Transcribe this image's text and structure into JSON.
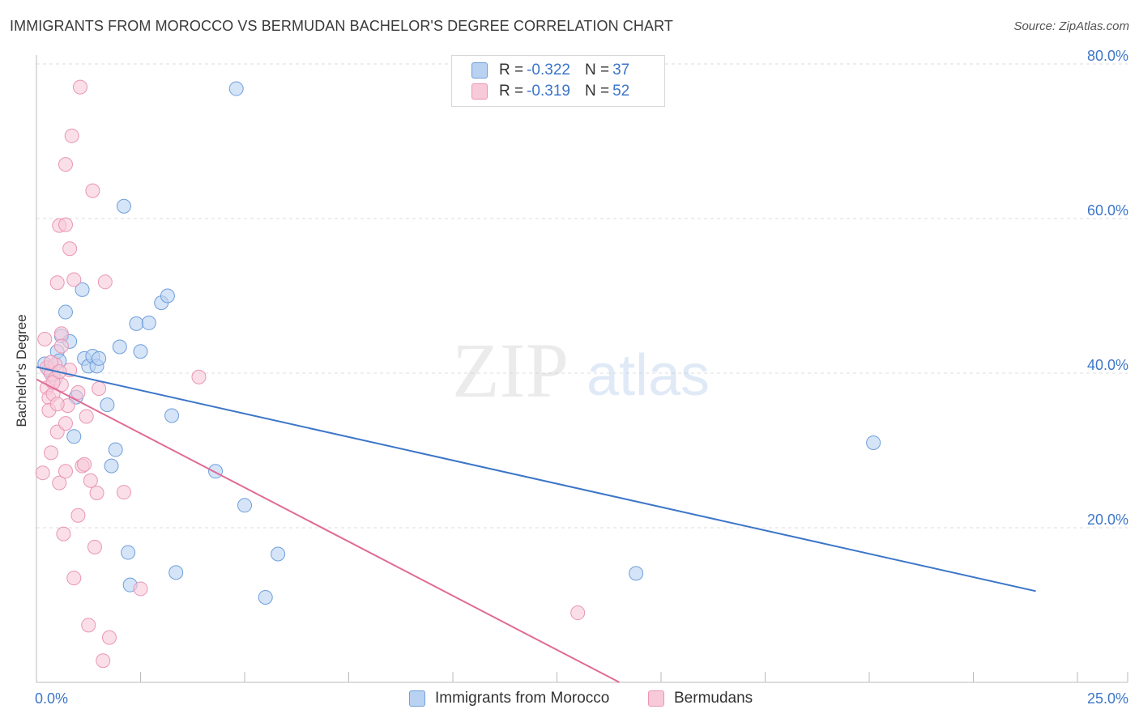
{
  "header": {
    "title": "IMMIGRANTS FROM MOROCCO VS BERMUDAN BACHELOR'S DEGREE CORRELATION CHART",
    "source": "Source: ZipAtlas.com"
  },
  "watermark": {
    "zip": "ZIP",
    "atlas": "atlas"
  },
  "legend": {
    "rows": [
      {
        "r_label": "R = ",
        "r_value": "-0.322",
        "n_label": "N = ",
        "n_value": "37"
      },
      {
        "r_label": "R = ",
        "r_value": "-0.319",
        "n_label": "N = ",
        "n_value": "52"
      }
    ]
  },
  "chart_data": {
    "type": "scatter",
    "title": "IMMIGRANTS FROM MOROCCO VS BERMUDAN BACHELOR'S DEGREE CORRELATION CHART",
    "xlabel": "",
    "ylabel": "Bachelor's Degree",
    "xlim": [
      0,
      25
    ],
    "ylim": [
      0,
      80
    ],
    "x_tick_labels": [
      "0.0%",
      "25.0%"
    ],
    "y_tick_labels": [
      "20.0%",
      "40.0%",
      "60.0%",
      "80.0%"
    ],
    "y_ticks": [
      20,
      40,
      60,
      80
    ],
    "grid": true,
    "series": [
      {
        "name": "Immigrants from Morocco",
        "color": "#6f9fdc",
        "fill": "#b9d2f2",
        "line_color": "#3c76c8",
        "trend": {
          "x0": 0,
          "y0": 40.8,
          "x1": 24.0,
          "y1": 11.8
        },
        "points": [
          [
            0.2,
            41.2
          ],
          [
            0.4,
            39.8
          ],
          [
            0.5,
            42.8
          ],
          [
            0.6,
            44.8
          ],
          [
            0.7,
            47.9
          ],
          [
            0.8,
            44.1
          ],
          [
            0.9,
            31.8
          ],
          [
            0.95,
            36.9
          ],
          [
            1.1,
            50.8
          ],
          [
            1.15,
            41.9
          ],
          [
            1.25,
            40.9
          ],
          [
            1.35,
            42.2
          ],
          [
            1.45,
            40.9
          ],
          [
            1.5,
            41.9
          ],
          [
            1.7,
            35.9
          ],
          [
            1.8,
            28.0
          ],
          [
            1.9,
            30.1
          ],
          [
            2.0,
            43.4
          ],
          [
            2.1,
            61.6
          ],
          [
            2.2,
            16.8
          ],
          [
            2.25,
            12.6
          ],
          [
            2.4,
            46.4
          ],
          [
            2.5,
            42.8
          ],
          [
            2.7,
            46.5
          ],
          [
            3.0,
            49.1
          ],
          [
            3.15,
            50.0
          ],
          [
            3.25,
            34.5
          ],
          [
            3.35,
            14.2
          ],
          [
            4.3,
            27.3
          ],
          [
            4.8,
            76.8
          ],
          [
            5.0,
            22.9
          ],
          [
            5.5,
            11.0
          ],
          [
            5.8,
            16.6
          ],
          [
            14.4,
            14.1
          ],
          [
            20.1,
            31.0
          ],
          [
            0.3,
            40.4
          ],
          [
            0.55,
            41.6
          ]
        ]
      },
      {
        "name": "Bermudans",
        "color": "#e996b4",
        "fill": "#f8c9d8",
        "line_color": "#e06b96",
        "trend": {
          "x0": 0,
          "y0": 39.2,
          "x1": 14.0,
          "y1": 0
        },
        "points": [
          [
            0.15,
            27.1
          ],
          [
            0.2,
            44.4
          ],
          [
            0.25,
            40.7
          ],
          [
            0.25,
            38.1
          ],
          [
            0.3,
            36.8
          ],
          [
            0.3,
            35.2
          ],
          [
            0.35,
            39.9
          ],
          [
            0.35,
            29.7
          ],
          [
            0.4,
            37.3
          ],
          [
            0.45,
            41.1
          ],
          [
            0.45,
            39.3
          ],
          [
            0.5,
            51.7
          ],
          [
            0.5,
            32.4
          ],
          [
            0.55,
            59.1
          ],
          [
            0.55,
            25.8
          ],
          [
            0.6,
            45.1
          ],
          [
            0.6,
            43.5
          ],
          [
            0.6,
            38.5
          ],
          [
            0.65,
            19.2
          ],
          [
            0.7,
            67.0
          ],
          [
            0.7,
            59.2
          ],
          [
            0.7,
            27.3
          ],
          [
            0.75,
            35.8
          ],
          [
            0.8,
            56.1
          ],
          [
            0.8,
            40.4
          ],
          [
            0.85,
            70.7
          ],
          [
            0.9,
            52.1
          ],
          [
            0.9,
            13.5
          ],
          [
            1.0,
            21.6
          ],
          [
            1.05,
            77.0
          ],
          [
            1.1,
            28.0
          ],
          [
            1.15,
            28.2
          ],
          [
            1.2,
            34.4
          ],
          [
            1.25,
            7.4
          ],
          [
            1.3,
            26.1
          ],
          [
            1.35,
            63.6
          ],
          [
            1.4,
            17.5
          ],
          [
            1.45,
            24.5
          ],
          [
            1.5,
            38.0
          ],
          [
            1.6,
            2.8
          ],
          [
            1.65,
            51.8
          ],
          [
            1.75,
            5.8
          ],
          [
            2.1,
            24.6
          ],
          [
            2.5,
            12.1
          ],
          [
            3.9,
            39.5
          ],
          [
            13.0,
            9.0
          ],
          [
            0.4,
            38.8
          ],
          [
            0.5,
            36.0
          ],
          [
            0.7,
            33.5
          ],
          [
            1.0,
            37.5
          ],
          [
            0.35,
            41.4
          ],
          [
            0.55,
            40.2
          ]
        ]
      }
    ]
  }
}
